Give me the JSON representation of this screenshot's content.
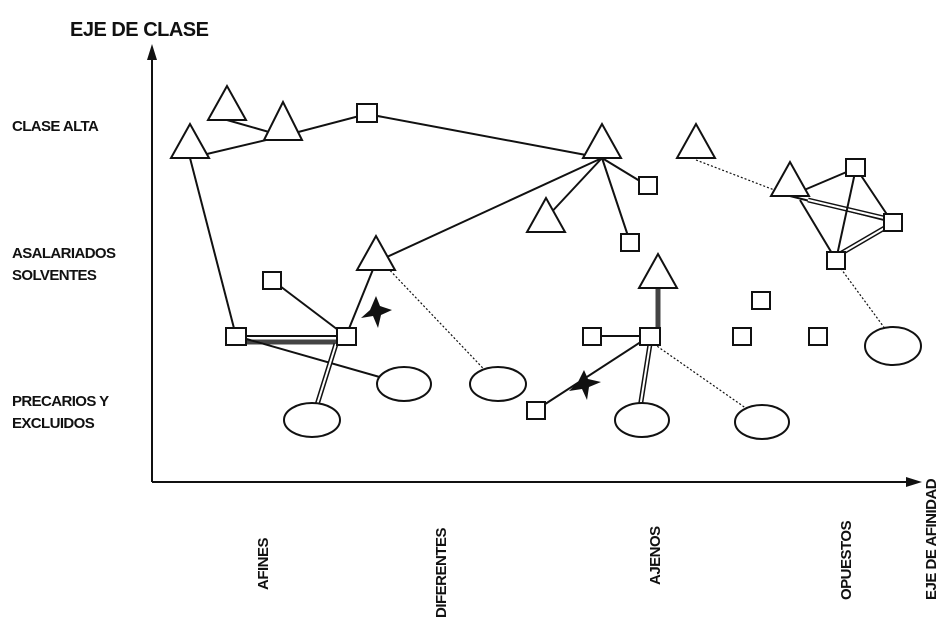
{
  "y_axis": {
    "title": "EJE DE CLASE",
    "levels": [
      {
        "lines": [
          "CLASE ALTA"
        ]
      },
      {
        "lines": [
          "ASALARIADOS",
          "SOLVENTES"
        ]
      },
      {
        "lines": [
          "PRECARIOS Y",
          "EXCLUIDOS"
        ]
      }
    ]
  },
  "x_axis": {
    "title": "EJE DE AFINIDAD",
    "categories": [
      "AFINES",
      "DIFERENTES",
      "AJENOS",
      "OPUESTOS"
    ]
  },
  "legend_shapes": [
    "triangle",
    "square",
    "ellipse",
    "star"
  ]
}
